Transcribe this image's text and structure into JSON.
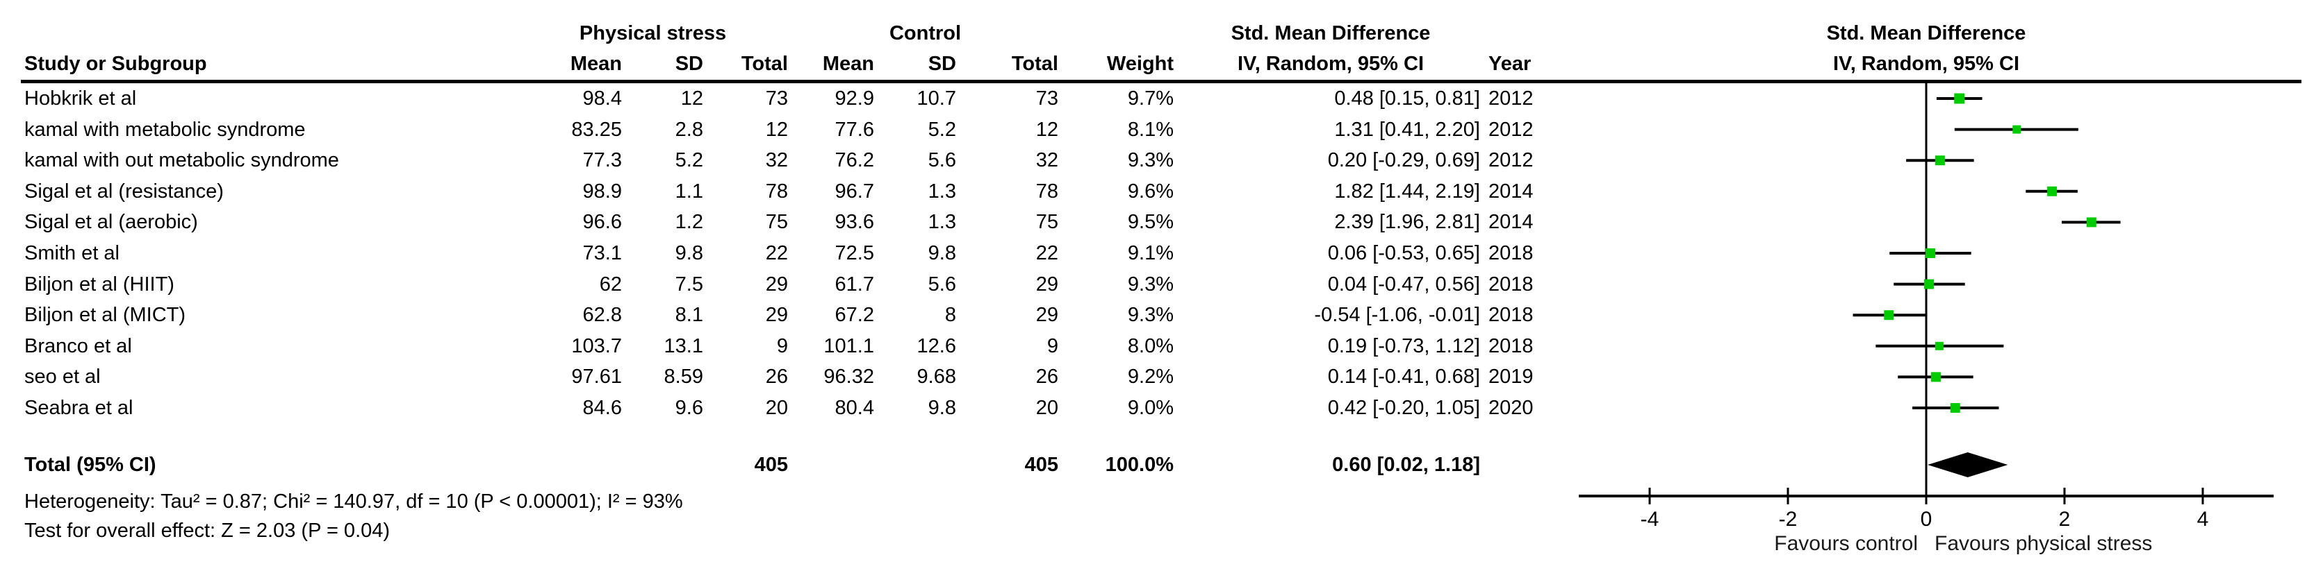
{
  "colors": {
    "marker_green": "#00CB00",
    "line_black": "#000000",
    "background": "#ffffff"
  },
  "table": {
    "group1_header": "Physical stress",
    "group2_header": "Control",
    "effect_header": "Std. Mean Difference",
    "effect_subheader": "IV, Random, 95% CI",
    "study_col_header": "Study or Subgroup",
    "sub_headers": {
      "mean": "Mean",
      "sd": "SD",
      "total": "Total",
      "weight": "Weight",
      "year": "Year"
    },
    "plot_header": "Std. Mean Difference",
    "plot_subheader": "IV, Random, 95% CI",
    "rows": [
      {
        "study": "Hobkrik et al",
        "mean1": "98.4",
        "sd1": "12",
        "total1": "73",
        "mean2": "92.9",
        "sd2": "10.7",
        "total2": "73",
        "weight": "9.7%",
        "ci": "0.48 [0.15, 0.81]",
        "year": "2012",
        "est": 0.48,
        "lo": 0.15,
        "hi": 0.81,
        "w": 9.7
      },
      {
        "study": "kamal with metabolic syndrome",
        "mean1": "83.25",
        "sd1": "2.8",
        "total1": "12",
        "mean2": "77.6",
        "sd2": "5.2",
        "total2": "12",
        "weight": "8.1%",
        "ci": "1.31 [0.41, 2.20]",
        "year": "2012",
        "est": 1.31,
        "lo": 0.41,
        "hi": 2.2,
        "w": 8.1
      },
      {
        "study": "kamal with out metabolic syndrome",
        "mean1": "77.3",
        "sd1": "5.2",
        "total1": "32",
        "mean2": "76.2",
        "sd2": "5.6",
        "total2": "32",
        "weight": "9.3%",
        "ci": "0.20 [-0.29, 0.69]",
        "year": "2012",
        "est": 0.2,
        "lo": -0.29,
        "hi": 0.69,
        "w": 9.3
      },
      {
        "study": "Sigal et al (resistance)",
        "mean1": "98.9",
        "sd1": "1.1",
        "total1": "78",
        "mean2": "96.7",
        "sd2": "1.3",
        "total2": "78",
        "weight": "9.6%",
        "ci": "1.82 [1.44, 2.19]",
        "year": "2014",
        "est": 1.82,
        "lo": 1.44,
        "hi": 2.19,
        "w": 9.6
      },
      {
        "study": "Sigal et al (aerobic)",
        "mean1": "96.6",
        "sd1": "1.2",
        "total1": "75",
        "mean2": "93.6",
        "sd2": "1.3",
        "total2": "75",
        "weight": "9.5%",
        "ci": "2.39 [1.96, 2.81]",
        "year": "2014",
        "est": 2.39,
        "lo": 1.96,
        "hi": 2.81,
        "w": 9.5
      },
      {
        "study": "Smith et al",
        "mean1": "73.1",
        "sd1": "9.8",
        "total1": "22",
        "mean2": "72.5",
        "sd2": "9.8",
        "total2": "22",
        "weight": "9.1%",
        "ci": "0.06 [-0.53, 0.65]",
        "year": "2018",
        "est": 0.06,
        "lo": -0.53,
        "hi": 0.65,
        "w": 9.1
      },
      {
        "study": "Biljon et al (HIIT)",
        "mean1": "62",
        "sd1": "7.5",
        "total1": "29",
        "mean2": "61.7",
        "sd2": "5.6",
        "total2": "29",
        "weight": "9.3%",
        "ci": "0.04 [-0.47, 0.56]",
        "year": "2018",
        "est": 0.04,
        "lo": -0.47,
        "hi": 0.56,
        "w": 9.3
      },
      {
        "study": "Biljon et al (MICT)",
        "mean1": "62.8",
        "sd1": "8.1",
        "total1": "29",
        "mean2": "67.2",
        "sd2": "8",
        "total2": "29",
        "weight": "9.3%",
        "ci": "-0.54 [-1.06, -0.01]",
        "year": "2018",
        "est": -0.54,
        "lo": -1.06,
        "hi": -0.01,
        "w": 9.3
      },
      {
        "study": "Branco et al",
        "mean1": "103.7",
        "sd1": "13.1",
        "total1": "9",
        "mean2": "101.1",
        "sd2": "12.6",
        "total2": "9",
        "weight": "8.0%",
        "ci": "0.19 [-0.73, 1.12]",
        "year": "2018",
        "est": 0.19,
        "lo": -0.73,
        "hi": 1.12,
        "w": 8.0
      },
      {
        "study": "seo et al",
        "mean1": "97.61",
        "sd1": "8.59",
        "total1": "26",
        "mean2": "96.32",
        "sd2": "9.68",
        "total2": "26",
        "weight": "9.2%",
        "ci": "0.14 [-0.41, 0.68]",
        "year": "2019",
        "est": 0.14,
        "lo": -0.41,
        "hi": 0.68,
        "w": 9.2
      },
      {
        "study": "Seabra et al",
        "mean1": "84.6",
        "sd1": "9.6",
        "total1": "20",
        "mean2": "80.4",
        "sd2": "9.8",
        "total2": "20",
        "weight": "9.0%",
        "ci": "0.42 [-0.20, 1.05]",
        "year": "2020",
        "est": 0.42,
        "lo": -0.2,
        "hi": 1.05,
        "w": 9.0
      }
    ],
    "total_row": {
      "label": "Total (95% CI)",
      "total1": "405",
      "total2": "405",
      "weight": "100.0%",
      "ci": "0.60 [0.02, 1.18]",
      "est": 0.6,
      "lo": 0.02,
      "hi": 1.18
    },
    "footer_lines": [
      "Heterogeneity: Tau² = 0.87; Chi² = 140.97, df = 10 (P < 0.00001); I² = 93%",
      "Test for overall effect: Z = 2.03 (P = 0.04)"
    ]
  },
  "axis": {
    "ticks": [
      "-4",
      "-2",
      "0",
      "2",
      "4"
    ],
    "tick_values": [
      -4,
      -2,
      0,
      2,
      4
    ],
    "favours_left": "Favours control",
    "favours_right": "Favours physical stress"
  },
  "chart_data": {
    "type": "scatter",
    "subtype": "forest-plot-meta-analysis",
    "title": "Std. Mean Difference  IV, Random, 95% CI",
    "xlim": [
      -5,
      5
    ],
    "x_ticks": [
      -4,
      -2,
      0,
      2,
      4
    ],
    "xlabel_left_of_zero": "Favours control",
    "xlabel_right_of_zero": "Favours physical stress",
    "grid": false,
    "studies": [
      {
        "name": "Hobkrik et al",
        "year": 2012,
        "mean_tx": 98.4,
        "sd_tx": 12,
        "n_tx": 73,
        "mean_ctrl": 92.9,
        "sd_ctrl": 10.7,
        "n_ctrl": 73,
        "weight_pct": 9.7,
        "est": 0.48,
        "ci_low": 0.15,
        "ci_high": 0.81
      },
      {
        "name": "kamal with metabolic syndrome",
        "year": 2012,
        "mean_tx": 83.25,
        "sd_tx": 2.8,
        "n_tx": 12,
        "mean_ctrl": 77.6,
        "sd_ctrl": 5.2,
        "n_ctrl": 12,
        "weight_pct": 8.1,
        "est": 1.31,
        "ci_low": 0.41,
        "ci_high": 2.2
      },
      {
        "name": "kamal with out metabolic syndrome",
        "year": 2012,
        "mean_tx": 77.3,
        "sd_tx": 5.2,
        "n_tx": 32,
        "mean_ctrl": 76.2,
        "sd_ctrl": 5.6,
        "n_ctrl": 32,
        "weight_pct": 9.3,
        "est": 0.2,
        "ci_low": -0.29,
        "ci_high": 0.69
      },
      {
        "name": "Sigal et al (resistance)",
        "year": 2014,
        "mean_tx": 98.9,
        "sd_tx": 1.1,
        "n_tx": 78,
        "mean_ctrl": 96.7,
        "sd_ctrl": 1.3,
        "n_ctrl": 78,
        "weight_pct": 9.6,
        "est": 1.82,
        "ci_low": 1.44,
        "ci_high": 2.19
      },
      {
        "name": "Sigal et al (aerobic)",
        "year": 2014,
        "mean_tx": 96.6,
        "sd_tx": 1.2,
        "n_tx": 75,
        "mean_ctrl": 93.6,
        "sd_ctrl": 1.3,
        "n_ctrl": 75,
        "weight_pct": 9.5,
        "est": 2.39,
        "ci_low": 1.96,
        "ci_high": 2.81
      },
      {
        "name": "Smith et al",
        "year": 2018,
        "mean_tx": 73.1,
        "sd_tx": 9.8,
        "n_tx": 22,
        "mean_ctrl": 72.5,
        "sd_ctrl": 9.8,
        "n_ctrl": 22,
        "weight_pct": 9.1,
        "est": 0.06,
        "ci_low": -0.53,
        "ci_high": 0.65
      },
      {
        "name": "Biljon et al (HIIT)",
        "year": 2018,
        "mean_tx": 62,
        "sd_tx": 7.5,
        "n_tx": 29,
        "mean_ctrl": 61.7,
        "sd_ctrl": 5.6,
        "n_ctrl": 29,
        "weight_pct": 9.3,
        "est": 0.04,
        "ci_low": -0.47,
        "ci_high": 0.56
      },
      {
        "name": "Biljon et al (MICT)",
        "year": 2018,
        "mean_tx": 62.8,
        "sd_tx": 8.1,
        "n_tx": 29,
        "mean_ctrl": 67.2,
        "sd_ctrl": 8,
        "n_ctrl": 29,
        "weight_pct": 9.3,
        "est": -0.54,
        "ci_low": -1.06,
        "ci_high": -0.01
      },
      {
        "name": "Branco et al",
        "year": 2018,
        "mean_tx": 103.7,
        "sd_tx": 13.1,
        "n_tx": 9,
        "mean_ctrl": 101.1,
        "sd_ctrl": 12.6,
        "n_ctrl": 9,
        "weight_pct": 8.0,
        "est": 0.19,
        "ci_low": -0.73,
        "ci_high": 1.12
      },
      {
        "name": "seo et al",
        "year": 2019,
        "mean_tx": 97.61,
        "sd_tx": 8.59,
        "n_tx": 26,
        "mean_ctrl": 96.32,
        "sd_ctrl": 9.68,
        "n_ctrl": 26,
        "weight_pct": 9.2,
        "est": 0.14,
        "ci_low": -0.41,
        "ci_high": 0.68
      },
      {
        "name": "Seabra et al",
        "year": 2020,
        "mean_tx": 84.6,
        "sd_tx": 9.6,
        "n_tx": 20,
        "mean_ctrl": 80.4,
        "sd_ctrl": 9.8,
        "n_ctrl": 20,
        "weight_pct": 9.0,
        "est": 0.42,
        "ci_low": -0.2,
        "ci_high": 1.05
      }
    ],
    "overall": {
      "name": "Total (95% CI)",
      "n_tx": 405,
      "n_ctrl": 405,
      "weight_pct": 100.0,
      "est": 0.6,
      "ci_low": 0.02,
      "ci_high": 1.18
    },
    "heterogeneity": {
      "tau2": 0.87,
      "chi2": 140.97,
      "df": 10,
      "p": "< 0.00001",
      "i2_pct": 93
    },
    "overall_effect_test": {
      "z": 2.03,
      "p": 0.04
    }
  }
}
